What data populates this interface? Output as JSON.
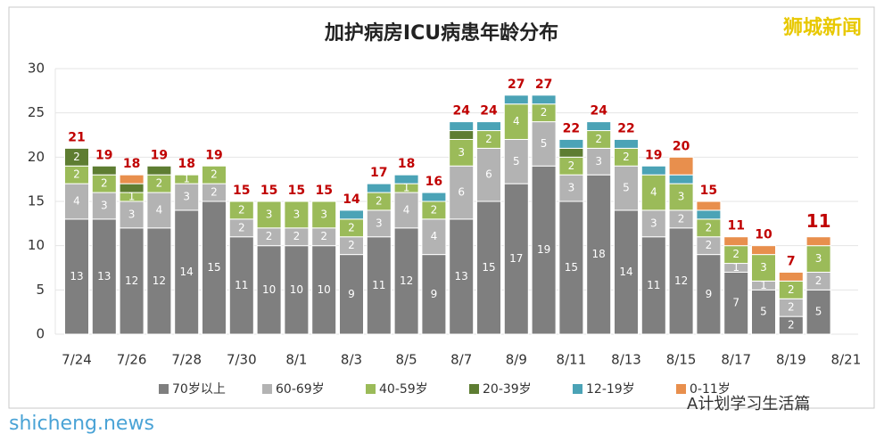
{
  "chart_data": {
    "type": "stacked_bar",
    "title": "加护病房ICU病患年龄分布",
    "categories": [
      "7/24",
      null,
      "7/26",
      null,
      "7/28",
      null,
      "7/30",
      null,
      "8/1",
      null,
      "8/3",
      null,
      "8/5",
      null,
      "8/7",
      null,
      "8/9",
      null,
      "8/11",
      null,
      "8/13",
      null,
      "8/15",
      null,
      "8/17",
      null,
      "8/19",
      null,
      "8/21"
    ],
    "series": [
      {
        "name": "70岁以上",
        "color": "#7f7f7f",
        "values": [
          13,
          13,
          12,
          12,
          14,
          15,
          11,
          10,
          10,
          10,
          9,
          11,
          12,
          9,
          13,
          15,
          17,
          19,
          15,
          18,
          14,
          11,
          12,
          9,
          7,
          5,
          2,
          5,
          null
        ]
      },
      {
        "name": "60-69岁",
        "color": "#b3b3b3",
        "values": [
          4,
          3,
          3,
          4,
          3,
          2,
          2,
          2,
          2,
          2,
          2,
          3,
          4,
          4,
          6,
          6,
          5,
          5,
          3,
          3,
          5,
          3,
          2,
          2,
          1,
          1,
          2,
          2,
          null
        ]
      },
      {
        "name": "40-59岁",
        "color": "#9bbb59",
        "values": [
          2,
          2,
          1,
          2,
          1,
          2,
          2,
          3,
          3,
          3,
          2,
          2,
          1,
          2,
          3,
          2,
          4,
          2,
          2,
          2,
          2,
          4,
          3,
          2,
          2,
          3,
          2,
          3,
          null
        ]
      },
      {
        "name": "20-39岁",
        "color": "#5e7d32",
        "values": [
          2,
          1,
          1,
          1,
          0,
          0,
          0,
          0,
          0,
          0,
          0,
          0,
          0,
          0,
          1,
          0,
          0,
          0,
          1,
          0,
          0,
          0,
          0,
          0,
          0,
          0,
          0,
          0,
          null
        ]
      },
      {
        "name": "12-19岁",
        "color": "#4ba3b6",
        "values": [
          0,
          0,
          0,
          0,
          0,
          0,
          0,
          0,
          0,
          0,
          1,
          1,
          1,
          1,
          1,
          1,
          1,
          1,
          1,
          1,
          1,
          1,
          1,
          1,
          0,
          0,
          0,
          0,
          null
        ]
      },
      {
        "name": "0-11岁",
        "color": "#e88f4d",
        "values": [
          0,
          0,
          1,
          0,
          0,
          0,
          0,
          0,
          0,
          0,
          0,
          0,
          0,
          0,
          0,
          0,
          0,
          0,
          0,
          0,
          0,
          0,
          2,
          1,
          1,
          1,
          1,
          1,
          null
        ]
      }
    ],
    "totals": [
      21,
      19,
      18,
      19,
      18,
      19,
      15,
      15,
      15,
      15,
      14,
      17,
      18,
      16,
      24,
      24,
      27,
      27,
      22,
      24,
      22,
      19,
      20,
      15,
      11,
      10,
      7,
      11,
      null
    ],
    "ylim": [
      0,
      30
    ],
    "yticks": [
      0,
      5,
      10,
      15,
      20,
      25,
      30
    ],
    "grid": true,
    "watermark": "狮城新闻",
    "footer_left": "shicheng.news",
    "footer_right": "A计划学习生活篇"
  }
}
